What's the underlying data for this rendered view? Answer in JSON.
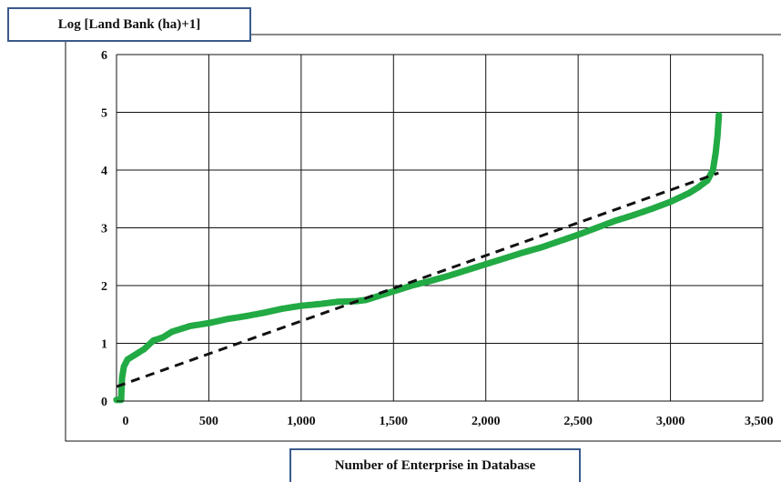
{
  "chart_data": {
    "type": "scatter",
    "ylabel": "Log  [Land Bank (ha)+1]",
    "xlabel": "Number of Enterprise in Database",
    "xlim": [
      0,
      3500
    ],
    "ylim": [
      0,
      6
    ],
    "x_ticks": [
      0,
      500,
      1000,
      1500,
      2000,
      2500,
      3000,
      3500
    ],
    "x_tick_labels": [
      "0",
      "500",
      "1,000",
      "1,500",
      "2,000",
      "2,500",
      "3,000",
      "3,500"
    ],
    "y_ticks": [
      0,
      1,
      2,
      3,
      4,
      5,
      6
    ],
    "y_tick_labels": [
      "0",
      "1",
      "2",
      "3",
      "4",
      "5",
      "6"
    ],
    "grid": true,
    "series": [
      {
        "color": "#22aa44",
        "points": [
          [
            0,
            0.02
          ],
          [
            25,
            0.02
          ],
          [
            30,
            0.4
          ],
          [
            40,
            0.6
          ],
          [
            60,
            0.72
          ],
          [
            100,
            0.8
          ],
          [
            150,
            0.9
          ],
          [
            200,
            1.05
          ],
          [
            250,
            1.1
          ],
          [
            300,
            1.2
          ],
          [
            400,
            1.3
          ],
          [
            500,
            1.35
          ],
          [
            600,
            1.42
          ],
          [
            700,
            1.47
          ],
          [
            800,
            1.53
          ],
          [
            900,
            1.6
          ],
          [
            1000,
            1.65
          ],
          [
            1100,
            1.68
          ],
          [
            1200,
            1.72
          ],
          [
            1300,
            1.73
          ],
          [
            1350,
            1.75
          ],
          [
            1400,
            1.8
          ],
          [
            1500,
            1.9
          ],
          [
            1600,
            2.0
          ],
          [
            1700,
            2.08
          ],
          [
            1800,
            2.17
          ],
          [
            1900,
            2.27
          ],
          [
            2000,
            2.37
          ],
          [
            2100,
            2.47
          ],
          [
            2200,
            2.57
          ],
          [
            2300,
            2.66
          ],
          [
            2400,
            2.77
          ],
          [
            2500,
            2.88
          ],
          [
            2600,
            3.0
          ],
          [
            2700,
            3.12
          ],
          [
            2800,
            3.22
          ],
          [
            2900,
            3.33
          ],
          [
            3000,
            3.45
          ],
          [
            3100,
            3.6
          ],
          [
            3150,
            3.7
          ],
          [
            3200,
            3.82
          ],
          [
            3230,
            4.0
          ],
          [
            3245,
            4.3
          ],
          [
            3255,
            4.6
          ],
          [
            3262,
            4.95
          ]
        ]
      }
    ],
    "trendline": {
      "style": "dashed",
      "color": "#111111",
      "x": [
        0,
        3260
      ],
      "y": [
        0.25,
        3.95
      ]
    }
  }
}
